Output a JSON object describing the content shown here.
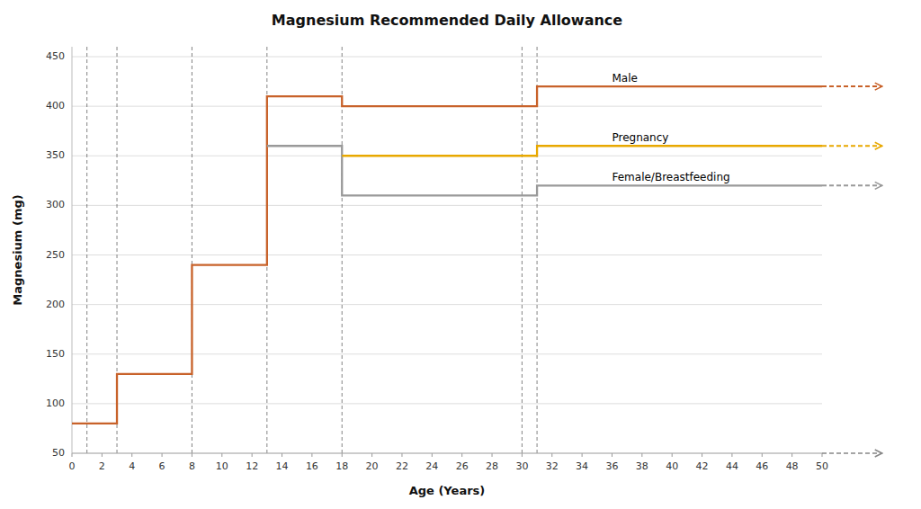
{
  "chart_data": {
    "type": "line",
    "title": "Magnesium Recommended Daily Allowance",
    "x_label": "Age (Years)",
    "y_label": "Magnesium (mg)",
    "xlim": [
      0,
      50
    ],
    "ylim": [
      50,
      460
    ],
    "xticks": [
      0,
      2,
      4,
      6,
      8,
      10,
      12,
      14,
      16,
      18,
      20,
      22,
      24,
      26,
      28,
      30,
      32,
      34,
      36,
      38,
      40,
      42,
      44,
      46,
      48,
      50
    ],
    "yticks": [
      50,
      100,
      150,
      200,
      250,
      300,
      350,
      400,
      450
    ],
    "grid": "y",
    "vlines": [
      1,
      3,
      8,
      13,
      18,
      30,
      31
    ],
    "series": [
      {
        "name": "Male",
        "color": "#C8622A",
        "x": [
          0,
          1,
          1,
          3,
          3,
          8,
          8,
          13,
          13,
          18,
          18,
          30,
          30,
          31,
          31,
          50
        ],
        "values": [
          80,
          80,
          80,
          80,
          130,
          130,
          240,
          240,
          410,
          410,
          400,
          400,
          400,
          400,
          420,
          420
        ]
      },
      {
        "name": "Female/Breastfeeding",
        "color": "#999999",
        "x": [
          13,
          13,
          18,
          18,
          30,
          30,
          31,
          31,
          50
        ],
        "values": [
          360,
          360,
          360,
          310,
          310,
          310,
          310,
          320,
          320
        ]
      },
      {
        "name": "Pregnancy",
        "color": "#E8A800",
        "x": [
          18,
          18,
          30,
          30,
          31,
          31,
          50
        ],
        "values": [
          350,
          350,
          350,
          350,
          350,
          360,
          360
        ]
      }
    ]
  }
}
